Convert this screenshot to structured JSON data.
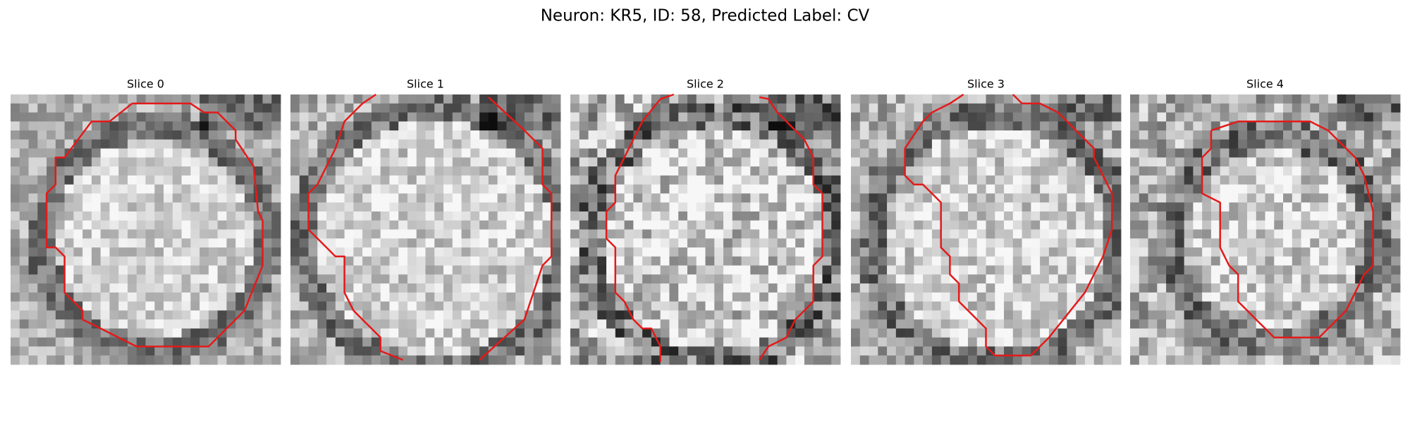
{
  "header": {
    "title": "Neuron: KR5, ID: 58, Predicted Label: CV"
  },
  "panels": [
    {
      "title": "Slice 0"
    },
    {
      "title": "Slice 1"
    },
    {
      "title": "Slice 2"
    },
    {
      "title": "Slice 3"
    },
    {
      "title": "Slice 4"
    }
  ]
}
